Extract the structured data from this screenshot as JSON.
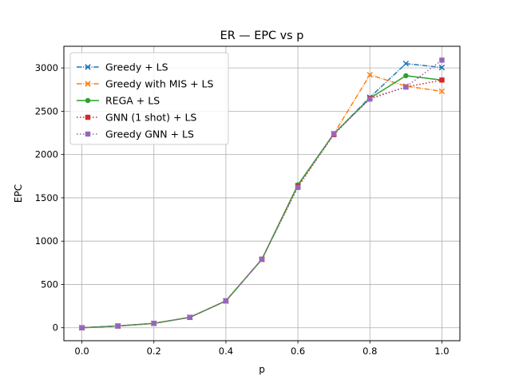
{
  "chart_data": {
    "type": "line",
    "title": "ER — EPC vs p",
    "xlabel": "p",
    "ylabel": "EPC",
    "xlim": [
      -0.05,
      1.05
    ],
    "ylim": [
      -150,
      3250
    ],
    "grid": true,
    "legend_position": "top-left",
    "x": [
      0.0,
      0.1,
      0.2,
      0.3,
      0.4,
      0.5,
      0.6,
      0.7,
      0.8,
      0.9,
      1.0
    ],
    "xticks": [
      {
        "value": 0.0,
        "label": "0.0"
      },
      {
        "value": 0.2,
        "label": "0.2"
      },
      {
        "value": 0.4,
        "label": "0.4"
      },
      {
        "value": 0.6,
        "label": "0.6"
      },
      {
        "value": 0.8,
        "label": "0.8"
      },
      {
        "value": 1.0,
        "label": "1.0"
      }
    ],
    "yticks": [
      {
        "value": 0,
        "label": "0"
      },
      {
        "value": 500,
        "label": "500"
      },
      {
        "value": 1000,
        "label": "1000"
      },
      {
        "value": 1500,
        "label": "1500"
      },
      {
        "value": 2000,
        "label": "2000"
      },
      {
        "value": 2500,
        "label": "2500"
      },
      {
        "value": 3000,
        "label": "3000"
      }
    ],
    "series": [
      {
        "name": "Greedy + LS",
        "color": "#1f77b4",
        "marker": "x",
        "dash": "dashdot",
        "values": [
          0,
          20,
          50,
          120,
          310,
          790,
          1640,
          2240,
          2660,
          3050,
          3005
        ]
      },
      {
        "name": "Greedy with MIS + LS",
        "color": "#ff7f0e",
        "marker": "x",
        "dash": "dashdot",
        "values": [
          0,
          20,
          50,
          120,
          310,
          790,
          1640,
          2240,
          2920,
          2790,
          2730
        ]
      },
      {
        "name": "REGA + LS",
        "color": "#2ca02c",
        "marker": "circle",
        "dash": "solid",
        "values": [
          0,
          20,
          50,
          120,
          310,
          790,
          1650,
          2240,
          2650,
          2910,
          2860
        ]
      },
      {
        "name": "GNN (1 shot) + LS",
        "color": "#d62728",
        "marker": "square",
        "dash": "dotted",
        "values": [
          0,
          20,
          50,
          120,
          310,
          790,
          1630,
          2230,
          2650,
          2780,
          2860
        ]
      },
      {
        "name": "Greedy GNN + LS",
        "color": "#9467bd",
        "marker": "square",
        "dash": "dotted",
        "values": [
          0,
          20,
          50,
          120,
          310,
          790,
          1620,
          2240,
          2640,
          2780,
          3090
        ]
      }
    ]
  }
}
